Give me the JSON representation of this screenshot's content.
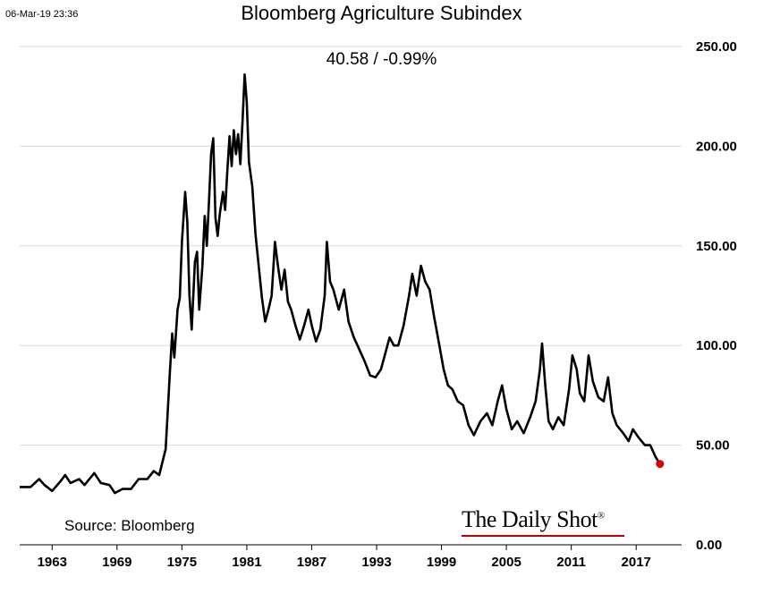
{
  "header": {
    "timestamp": "06-Mar-19 23:36",
    "title": "Bloomberg Agriculture Subindex",
    "reading": "40.58  /  -0.99%"
  },
  "footer": {
    "source": "Source: Bloomberg",
    "logo_text": "The Daily Shot",
    "logo_mark": "®"
  },
  "colors": {
    "line": "#000000",
    "last_point": "#e00000",
    "grid": "#d9d9d9",
    "logo_rule": "#c00000"
  },
  "chart_data": {
    "type": "line",
    "title": "Bloomberg Agriculture Subindex",
    "xlabel": "",
    "ylabel": "",
    "xlim": [
      1960.0,
      2021.2
    ],
    "ylim": [
      0,
      250
    ],
    "yticks": [
      0,
      50,
      100,
      150,
      200,
      250
    ],
    "ytick_labels": [
      "0.00",
      "50.00",
      "100.00",
      "150.00",
      "200.00",
      "250.00"
    ],
    "xticks": [
      1963,
      1969,
      1975,
      1981,
      1987,
      1993,
      1999,
      2005,
      2011,
      2017
    ],
    "xtick_labels": [
      "1963",
      "1969",
      "1975",
      "1981",
      "1987",
      "1993",
      "1999",
      "2005",
      "2011",
      "2017"
    ],
    "grid": true,
    "y_axis_side": "right",
    "last_value": 40.58,
    "last_change_pct": -0.99,
    "series": [
      {
        "values": [
          [
            1960.0,
            29
          ],
          [
            1961.0,
            29
          ],
          [
            1961.8,
            33
          ],
          [
            1962.3,
            30
          ],
          [
            1963.0,
            27
          ],
          [
            1963.8,
            32
          ],
          [
            1964.2,
            35
          ],
          [
            1964.7,
            31
          ],
          [
            1965.5,
            33
          ],
          [
            1966.0,
            30
          ],
          [
            1966.9,
            36
          ],
          [
            1967.5,
            31
          ],
          [
            1968.3,
            30
          ],
          [
            1968.8,
            26
          ],
          [
            1969.5,
            28
          ],
          [
            1970.3,
            28
          ],
          [
            1971.0,
            33
          ],
          [
            1971.8,
            33
          ],
          [
            1972.4,
            37
          ],
          [
            1972.9,
            35
          ],
          [
            1973.5,
            48
          ],
          [
            1973.9,
            88
          ],
          [
            1974.1,
            106
          ],
          [
            1974.3,
            94
          ],
          [
            1974.6,
            118
          ],
          [
            1974.8,
            124
          ],
          [
            1975.0,
            152
          ],
          [
            1975.3,
            177
          ],
          [
            1975.5,
            162
          ],
          [
            1975.7,
            125
          ],
          [
            1975.9,
            108
          ],
          [
            1976.2,
            142
          ],
          [
            1976.4,
            147
          ],
          [
            1976.6,
            118
          ],
          [
            1976.9,
            140
          ],
          [
            1977.1,
            165
          ],
          [
            1977.3,
            150
          ],
          [
            1977.5,
            172
          ],
          [
            1977.7,
            196
          ],
          [
            1977.9,
            204
          ],
          [
            1978.1,
            164
          ],
          [
            1978.3,
            155
          ],
          [
            1978.5,
            166
          ],
          [
            1978.8,
            177
          ],
          [
            1979.0,
            168
          ],
          [
            1979.2,
            188
          ],
          [
            1979.4,
            205
          ],
          [
            1979.6,
            190
          ],
          [
            1979.8,
            208
          ],
          [
            1980.0,
            196
          ],
          [
            1980.2,
            206
          ],
          [
            1980.4,
            191
          ],
          [
            1980.6,
            212
          ],
          [
            1980.8,
            236
          ],
          [
            1981.0,
            222
          ],
          [
            1981.2,
            192
          ],
          [
            1981.5,
            180
          ],
          [
            1981.8,
            156
          ],
          [
            1982.1,
            140
          ],
          [
            1982.4,
            124
          ],
          [
            1982.7,
            112
          ],
          [
            1983.0,
            118
          ],
          [
            1983.3,
            125
          ],
          [
            1983.6,
            152
          ],
          [
            1983.9,
            139
          ],
          [
            1984.2,
            128
          ],
          [
            1984.5,
            138
          ],
          [
            1984.8,
            122
          ],
          [
            1985.1,
            118
          ],
          [
            1985.5,
            110
          ],
          [
            1985.9,
            103
          ],
          [
            1986.3,
            110
          ],
          [
            1986.7,
            118
          ],
          [
            1987.0,
            110
          ],
          [
            1987.4,
            102
          ],
          [
            1987.8,
            108
          ],
          [
            1988.2,
            125
          ],
          [
            1988.4,
            152
          ],
          [
            1988.7,
            132
          ],
          [
            1989.0,
            128
          ],
          [
            1989.5,
            118
          ],
          [
            1990.0,
            128
          ],
          [
            1990.4,
            112
          ],
          [
            1990.9,
            104
          ],
          [
            1991.4,
            98
          ],
          [
            1991.9,
            92
          ],
          [
            1992.4,
            85
          ],
          [
            1992.9,
            84
          ],
          [
            1993.4,
            88
          ],
          [
            1993.8,
            96
          ],
          [
            1994.2,
            104
          ],
          [
            1994.6,
            100
          ],
          [
            1995.0,
            100
          ],
          [
            1995.5,
            110
          ],
          [
            1996.0,
            125
          ],
          [
            1996.3,
            136
          ],
          [
            1996.7,
            125
          ],
          [
            1997.1,
            140
          ],
          [
            1997.5,
            132
          ],
          [
            1997.9,
            128
          ],
          [
            1998.3,
            115
          ],
          [
            1998.8,
            100
          ],
          [
            1999.2,
            88
          ],
          [
            1999.6,
            80
          ],
          [
            2000.0,
            78
          ],
          [
            2000.5,
            72
          ],
          [
            2001.0,
            70
          ],
          [
            2001.5,
            60
          ],
          [
            2002.0,
            55
          ],
          [
            2002.6,
            62
          ],
          [
            2003.2,
            66
          ],
          [
            2003.7,
            60
          ],
          [
            2004.2,
            72
          ],
          [
            2004.6,
            80
          ],
          [
            2005.0,
            68
          ],
          [
            2005.5,
            58
          ],
          [
            2006.0,
            62
          ],
          [
            2006.6,
            56
          ],
          [
            2007.2,
            64
          ],
          [
            2007.7,
            72
          ],
          [
            2008.1,
            88
          ],
          [
            2008.3,
            101
          ],
          [
            2008.6,
            80
          ],
          [
            2008.9,
            62
          ],
          [
            2009.3,
            58
          ],
          [
            2009.8,
            64
          ],
          [
            2010.3,
            60
          ],
          [
            2010.8,
            78
          ],
          [
            2011.1,
            95
          ],
          [
            2011.5,
            88
          ],
          [
            2011.8,
            76
          ],
          [
            2012.2,
            72
          ],
          [
            2012.6,
            95
          ],
          [
            2013.0,
            82
          ],
          [
            2013.5,
            74
          ],
          [
            2014.0,
            72
          ],
          [
            2014.4,
            84
          ],
          [
            2014.8,
            66
          ],
          [
            2015.2,
            60
          ],
          [
            2015.8,
            56
          ],
          [
            2016.3,
            52
          ],
          [
            2016.7,
            58
          ],
          [
            2017.2,
            54
          ],
          [
            2017.8,
            50
          ],
          [
            2018.3,
            50
          ],
          [
            2018.8,
            44
          ],
          [
            2019.2,
            40.58
          ]
        ]
      }
    ]
  }
}
